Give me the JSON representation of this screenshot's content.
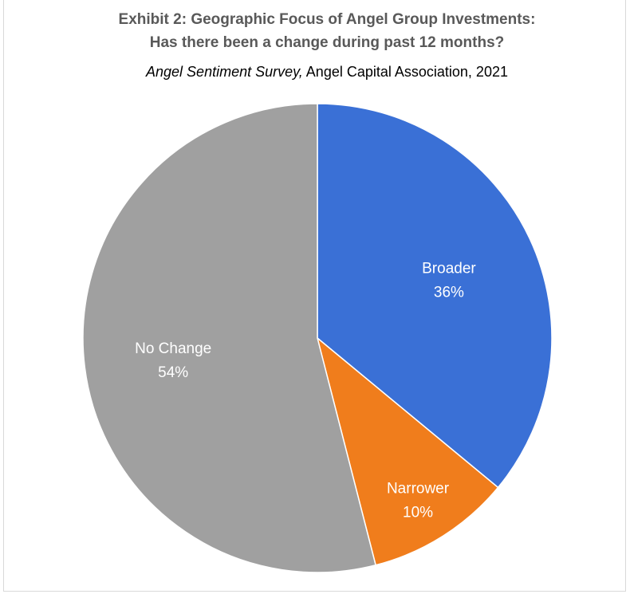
{
  "chart_data": {
    "type": "pie",
    "title": "Exhibit 2: Geographic Focus of Angel Group Investments:",
    "title_line2": "Has there been a change during past 12 months?",
    "subtitle_italic": "Angel Sentiment Survey,",
    "subtitle_rest": " Angel Capital Association, 2021",
    "slices": [
      {
        "label": "Broader",
        "value": 36,
        "value_label": "36%",
        "color": "#3a70d6"
      },
      {
        "label": "Narrower",
        "value": 10,
        "value_label": "10%",
        "color": "#f07d1c"
      },
      {
        "label": "No Change",
        "value": 54,
        "value_label": "54%",
        "color": "#a0a0a0"
      }
    ],
    "start_angle_deg": 0,
    "direction": "clockwise"
  }
}
